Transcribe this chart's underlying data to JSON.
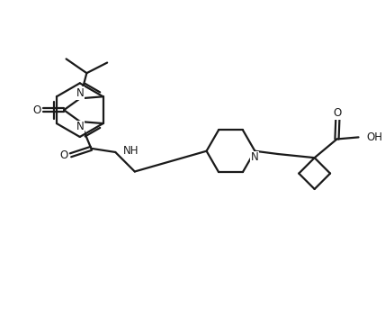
{
  "background": "#ffffff",
  "line_color": "#1a1a1a",
  "line_width": 1.6,
  "font_size": 8.5,
  "figsize": [
    4.28,
    3.52
  ],
  "dpi": 100,
  "xlim": [
    0,
    10
  ],
  "ylim": [
    0,
    8.5
  ]
}
